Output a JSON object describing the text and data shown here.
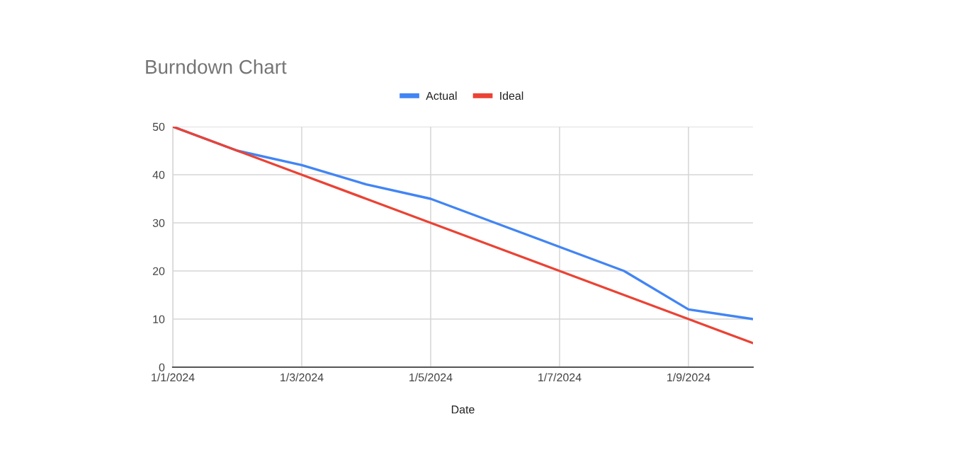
{
  "chart_data": {
    "type": "line",
    "title": "Burndown Chart",
    "xlabel": "Date",
    "x": [
      "2024-01-01",
      "2024-01-02",
      "2024-01-03",
      "2024-01-04",
      "2024-01-05",
      "2024-01-06",
      "2024-01-07",
      "2024-01-08",
      "2024-01-09",
      "2024-01-10"
    ],
    "series": [
      {
        "name": "Actual",
        "color": "#4285f4",
        "values": [
          50,
          45,
          42,
          38,
          35,
          30,
          25,
          20,
          12,
          10
        ]
      },
      {
        "name": "Ideal",
        "color": "#ea4335",
        "values": [
          50,
          45,
          40,
          35,
          30,
          25,
          20,
          15,
          10,
          5
        ]
      }
    ],
    "xlim": [
      "2024-01-01",
      "2024-01-10"
    ],
    "xticks": [
      {
        "value": "2024-01-01",
        "label": "1/1/2024"
      },
      {
        "value": "2024-01-03",
        "label": "1/3/2024"
      },
      {
        "value": "2024-01-05",
        "label": "1/5/2024"
      },
      {
        "value": "2024-01-07",
        "label": "1/7/2024"
      },
      {
        "value": "2024-01-09",
        "label": "1/9/2024"
      }
    ],
    "ylim": [
      0,
      50
    ],
    "yticks": [
      0,
      10,
      20,
      30,
      40,
      50
    ],
    "grid": true,
    "legend": "top",
    "marker": "none",
    "line_style": "solid"
  }
}
